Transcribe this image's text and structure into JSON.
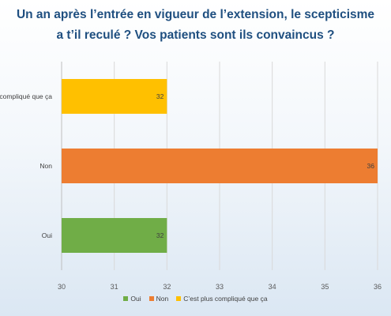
{
  "chart_data": {
    "type": "bar",
    "orientation": "horizontal",
    "title_lines": [
      "Un an après l’entrée en vigueur de l’extension, le scepticisme",
      "a t’il reculé ? Vos patients sont ils convaincus ?"
    ],
    "categories": [
      "Oui",
      "Non",
      "C'est plus compliqué que ça"
    ],
    "category_labels_shown": [
      "Oui",
      "Non",
      "compliqué que ça"
    ],
    "values": [
      32,
      36,
      32
    ],
    "colors": [
      "#70ad47",
      "#ed7d31",
      "#ffc000"
    ],
    "xlim": [
      30,
      36
    ],
    "xticks": [
      "30",
      "31",
      "32",
      "33",
      "34",
      "35",
      "36"
    ],
    "grid": true,
    "legend_position": "bottom",
    "legend": [
      {
        "label": "Oui",
        "color": "#70ad47"
      },
      {
        "label": "Non",
        "color": "#ed7d31"
      },
      {
        "label": "C’est plus compliqué que ça",
        "color": "#ffc000"
      }
    ]
  }
}
